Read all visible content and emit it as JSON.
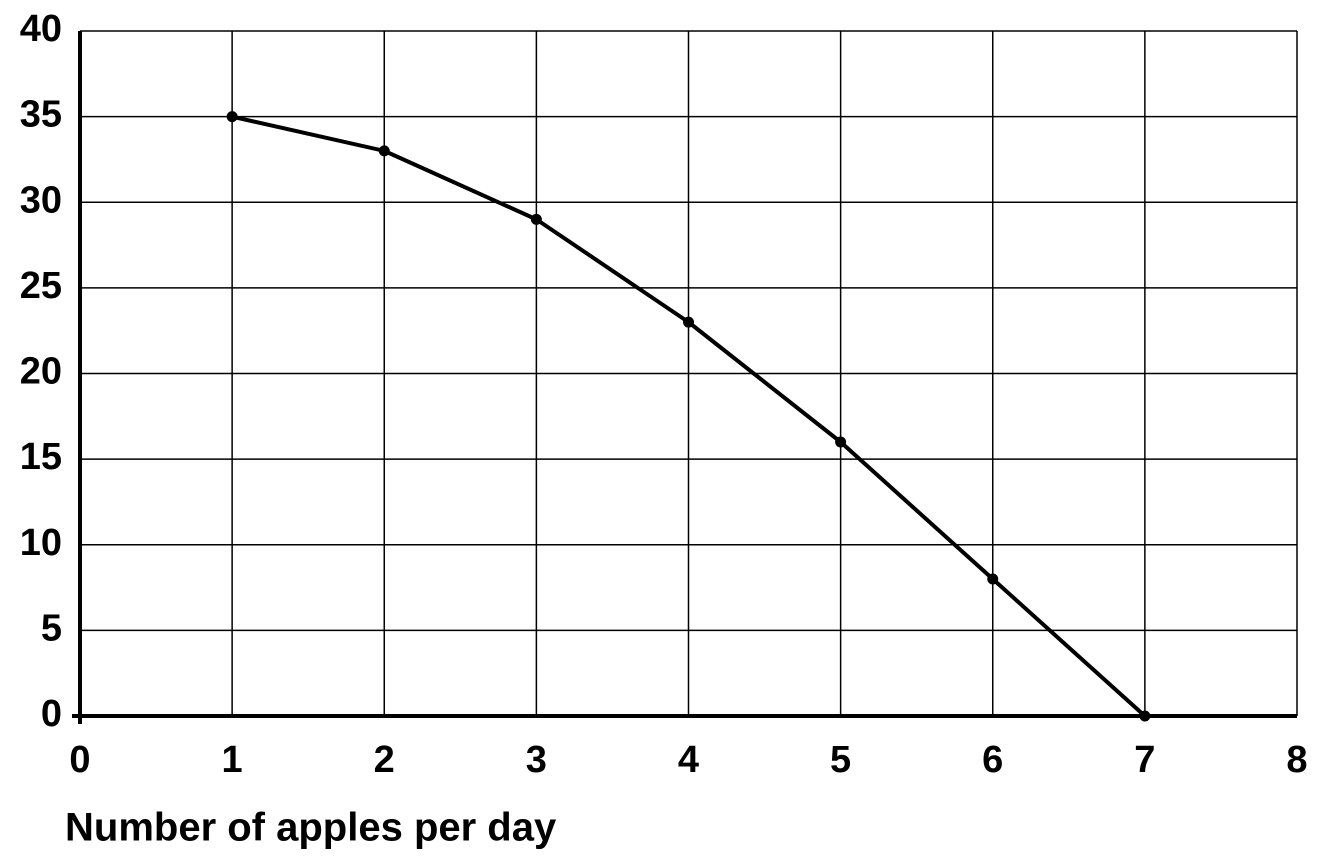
{
  "chart_data": {
    "type": "line",
    "x_label": "Number of apples per day",
    "x": [
      1,
      2,
      3,
      4,
      5,
      6,
      7
    ],
    "series": [
      {
        "color": "#000000",
        "values": [
          35,
          33,
          29,
          23,
          16,
          8,
          0
        ]
      }
    ],
    "xlim": [
      0,
      8
    ],
    "xticks": [
      0,
      1,
      2,
      3,
      4,
      5,
      6,
      7,
      8
    ],
    "ylim": [
      0,
      40
    ],
    "yticks": [
      0,
      5,
      10,
      15,
      20,
      25,
      30,
      35,
      40
    ],
    "grid": true
  }
}
